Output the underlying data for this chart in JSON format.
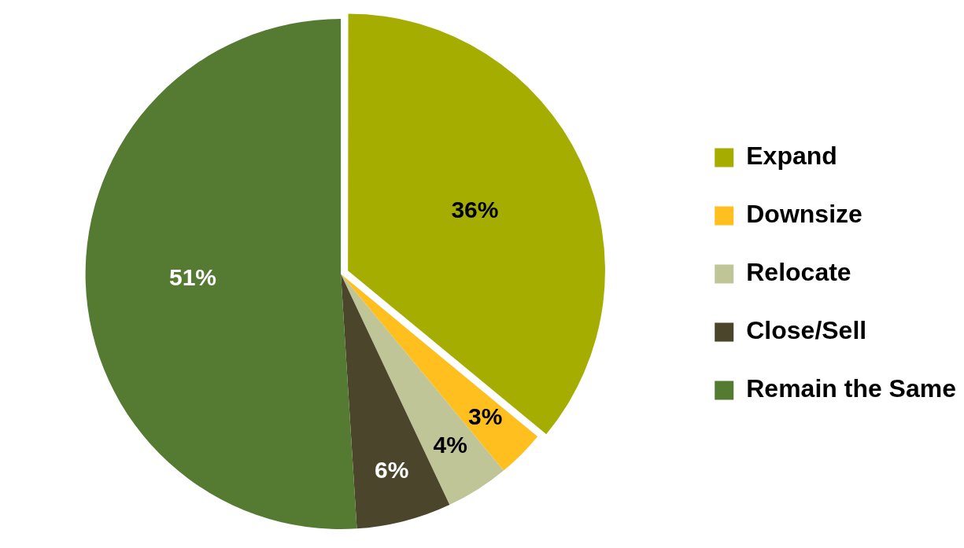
{
  "chart_data": {
    "type": "pie",
    "categories": [
      "Expand",
      "Downsize",
      "Relocate",
      "Close/Sell",
      "Remain the Same"
    ],
    "values": [
      36,
      3,
      4,
      6,
      51
    ],
    "colors": [
      "#a5ae00",
      "#ffbf1f",
      "#c0c597",
      "#4b452c",
      "#557a32"
    ],
    "value_labels": [
      "36%",
      "3%",
      "4%",
      "6%",
      "51%"
    ],
    "legend": "right"
  }
}
